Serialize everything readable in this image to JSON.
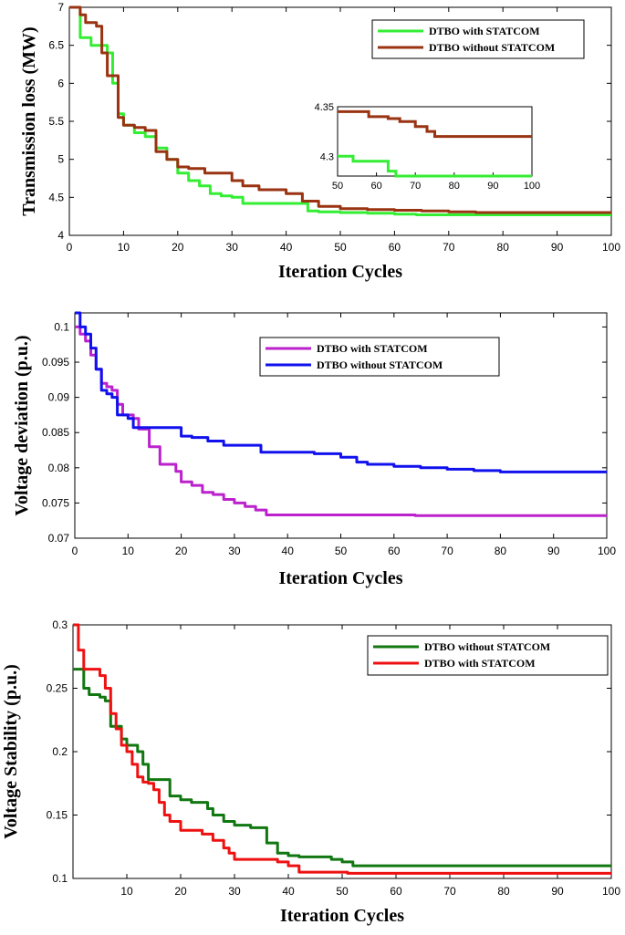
{
  "chart_data": [
    {
      "type": "line",
      "title": "",
      "xlabel": "Iteration Cycles",
      "ylabel": "Transmission loss (MW)",
      "xlim": [
        0,
        100
      ],
      "ylim": [
        4,
        7
      ],
      "xticks": [
        0,
        10,
        20,
        30,
        40,
        50,
        60,
        70,
        80,
        90,
        100
      ],
      "yticks": [
        4,
        4.5,
        5,
        5.5,
        6,
        6.5,
        7
      ],
      "legend_position": "top-right",
      "series": [
        {
          "name": "DTBO with STATCOM",
          "color": "#33ee33",
          "x": [
            0,
            2,
            4,
            5,
            7,
            8,
            9,
            10,
            12,
            14,
            16,
            18,
            20,
            22,
            24,
            26,
            28,
            30,
            32,
            34,
            36,
            40,
            44,
            46,
            50,
            55,
            60,
            64,
            100
          ],
          "y": [
            7.0,
            6.6,
            6.5,
            6.5,
            6.4,
            6.0,
            5.6,
            5.45,
            5.35,
            5.3,
            5.15,
            5.0,
            4.82,
            4.72,
            4.65,
            4.55,
            4.52,
            4.5,
            4.42,
            4.42,
            4.42,
            4.42,
            4.32,
            4.31,
            4.3,
            4.29,
            4.28,
            4.27,
            4.27
          ]
        },
        {
          "name": "DTBO without STATCOM",
          "color": "#993311",
          "x": [
            0,
            2,
            3,
            5,
            6,
            7,
            9,
            10,
            12,
            14,
            16,
            18,
            20,
            22,
            25,
            30,
            32,
            35,
            40,
            43,
            46,
            50,
            55,
            60,
            65,
            70,
            75,
            80,
            100
          ],
          "y": [
            7.0,
            6.9,
            6.8,
            6.75,
            6.4,
            6.1,
            5.55,
            5.45,
            5.42,
            5.38,
            5.1,
            5.0,
            4.9,
            4.88,
            4.82,
            4.72,
            4.65,
            4.6,
            4.55,
            4.45,
            4.38,
            4.35,
            4.34,
            4.33,
            4.32,
            4.31,
            4.3,
            4.3,
            4.3
          ]
        }
      ],
      "inset": {
        "xlim": [
          50,
          100
        ],
        "ylim": [
          4.28,
          4.35
        ],
        "xticks": [
          50,
          60,
          70,
          80,
          90,
          100
        ],
        "yticks": [
          4.3,
          4.35
        ],
        "ytick_labels": [
          "4.3",
          "4.35"
        ],
        "series": [
          {
            "name": "DTBO with STATCOM",
            "color": "#33ee33",
            "x": [
              50,
              52,
              54,
              57,
              63,
              65,
              100
            ],
            "y": [
              4.3,
              4.3,
              4.295,
              4.295,
              4.285,
              4.28,
              4.28
            ]
          },
          {
            "name": "DTBO without STATCOM",
            "color": "#993311",
            "x": [
              50,
              56,
              58,
              63,
              66,
              70,
              73,
              75,
              100
            ],
            "y": [
              4.345,
              4.345,
              4.34,
              4.338,
              4.335,
              4.33,
              4.325,
              4.32,
              4.32
            ]
          }
        ]
      }
    },
    {
      "type": "line",
      "title": "",
      "xlabel": "Iteration Cycles",
      "ylabel": "Voltage deviation (p.u.)",
      "xlim": [
        0,
        100
      ],
      "ylim": [
        0.07,
        0.102
      ],
      "xticks": [
        0,
        10,
        20,
        30,
        40,
        50,
        60,
        70,
        80,
        90,
        100
      ],
      "yticks": [
        0.07,
        0.075,
        0.08,
        0.085,
        0.09,
        0.095,
        0.1
      ],
      "ytick_labels": [
        "0.07",
        "0.075",
        "0.08",
        "0.085",
        "0.09",
        "0.095",
        "0.1"
      ],
      "legend_position": "top-right",
      "series": [
        {
          "name": "DTBO with STATCOM",
          "color": "#bb22cc",
          "x": [
            0,
            1,
            2,
            3,
            4,
            5,
            6,
            7,
            8,
            9,
            10,
            11,
            12,
            14,
            16,
            18,
            19,
            20,
            22,
            24,
            26,
            28,
            30,
            32,
            34,
            36,
            40,
            50,
            60,
            64,
            70,
            100
          ],
          "y": [
            0.1,
            0.099,
            0.098,
            0.096,
            0.094,
            0.092,
            0.0915,
            0.091,
            0.089,
            0.0875,
            0.0875,
            0.087,
            0.0855,
            0.083,
            0.0805,
            0.0805,
            0.0795,
            0.078,
            0.0775,
            0.0765,
            0.0762,
            0.0755,
            0.075,
            0.0745,
            0.074,
            0.0733,
            0.0733,
            0.0733,
            0.0733,
            0.0732,
            0.0732,
            0.0732
          ]
        },
        {
          "name": "DTBO without STATCOM",
          "color": "#1111ee",
          "x": [
            0,
            1,
            2,
            3,
            4,
            5,
            6,
            7,
            8,
            9,
            10,
            11,
            12,
            20,
            22,
            25,
            28,
            30,
            35,
            40,
            45,
            50,
            53,
            55,
            60,
            65,
            70,
            75,
            80,
            100
          ],
          "y": [
            0.102,
            0.1,
            0.099,
            0.097,
            0.094,
            0.091,
            0.0905,
            0.09,
            0.0875,
            0.0875,
            0.087,
            0.0857,
            0.0857,
            0.0845,
            0.0843,
            0.0838,
            0.0832,
            0.0832,
            0.0822,
            0.0822,
            0.082,
            0.0815,
            0.0808,
            0.0805,
            0.0802,
            0.08,
            0.0798,
            0.0796,
            0.0794,
            0.0794
          ]
        }
      ]
    },
    {
      "type": "line",
      "title": "",
      "xlabel": "Iteration Cycles",
      "ylabel": "Voltage Stability  (p.u.)",
      "xlim": [
        0,
        100
      ],
      "ylim": [
        0.1,
        0.3
      ],
      "xticks": [
        10,
        20,
        30,
        40,
        50,
        60,
        70,
        80,
        90,
        100
      ],
      "yticks": [
        0.1,
        0.15,
        0.2,
        0.25,
        0.3
      ],
      "ytick_labels": [
        "0.1",
        "0.15",
        "0.2",
        "0.25",
        "0.3"
      ],
      "legend_position": "top-right",
      "series": [
        {
          "name": "DTBO without STATCOM",
          "color": "#117711",
          "x": [
            0,
            1,
            2,
            3,
            5,
            6,
            7,
            8,
            9,
            10,
            11,
            12,
            13,
            14,
            17,
            18,
            20,
            22,
            25,
            26,
            28,
            30,
            33,
            36,
            38,
            40,
            42,
            48,
            50,
            52,
            55,
            100
          ],
          "y": [
            0.265,
            0.265,
            0.25,
            0.245,
            0.243,
            0.24,
            0.22,
            0.22,
            0.21,
            0.205,
            0.205,
            0.2,
            0.19,
            0.178,
            0.178,
            0.165,
            0.162,
            0.16,
            0.155,
            0.15,
            0.145,
            0.142,
            0.14,
            0.128,
            0.12,
            0.118,
            0.117,
            0.115,
            0.113,
            0.11,
            0.11,
            0.11
          ]
        },
        {
          "name": "DTBO with STATCOM",
          "color": "#ee1111",
          "x": [
            0,
            1,
            2,
            4,
            5,
            6,
            7,
            8,
            9,
            10,
            11,
            12,
            13,
            14,
            15,
            16,
            17,
            18,
            20,
            24,
            26,
            28,
            29,
            30,
            34,
            38,
            40,
            42,
            50,
            51,
            100
          ],
          "y": [
            0.3,
            0.28,
            0.265,
            0.265,
            0.26,
            0.25,
            0.23,
            0.218,
            0.205,
            0.2,
            0.19,
            0.18,
            0.176,
            0.175,
            0.17,
            0.16,
            0.15,
            0.145,
            0.138,
            0.135,
            0.13,
            0.124,
            0.12,
            0.115,
            0.115,
            0.113,
            0.11,
            0.105,
            0.105,
            0.104,
            0.104
          ]
        }
      ]
    }
  ]
}
